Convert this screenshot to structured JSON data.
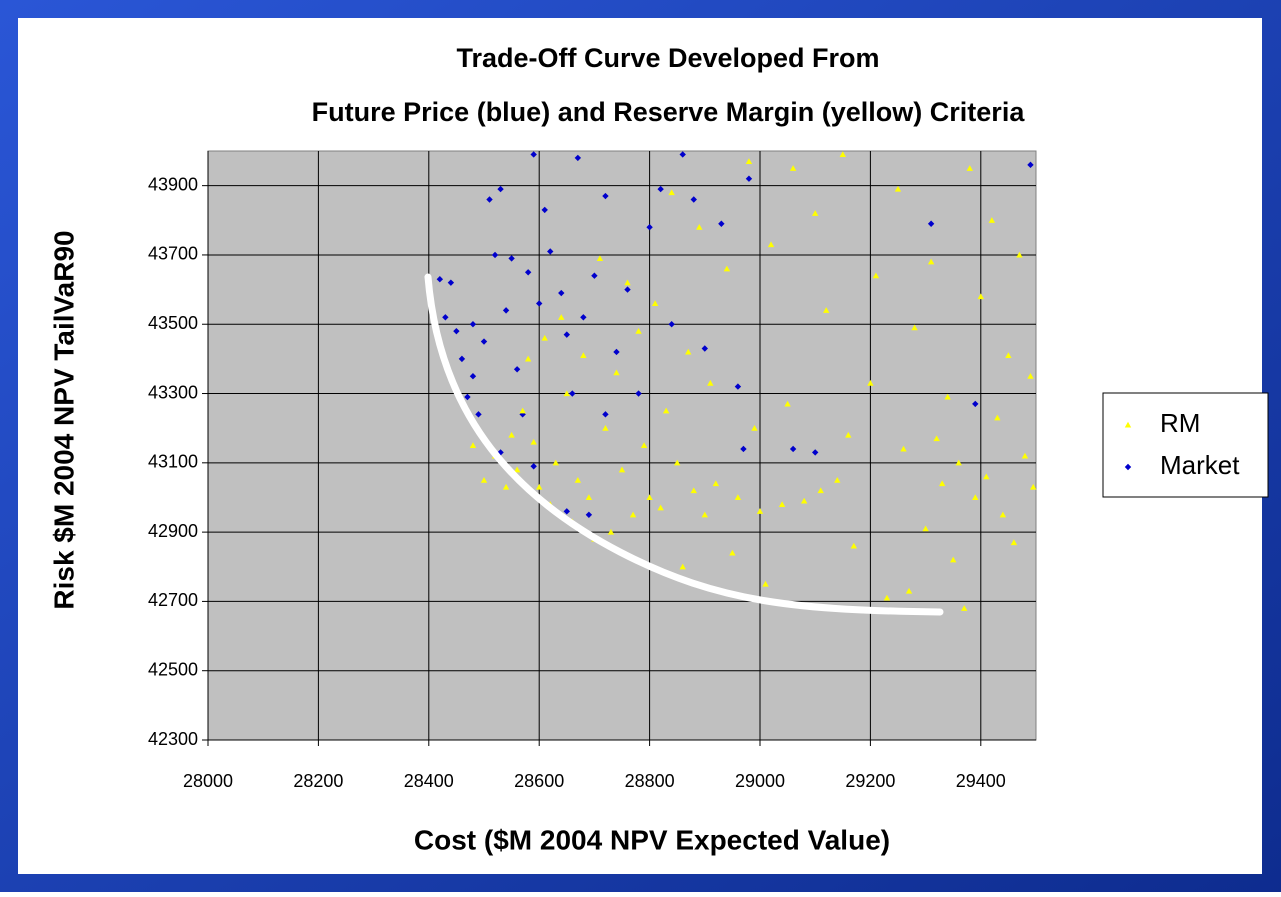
{
  "chart_data": {
    "type": "scatter",
    "title": "Trade-Off Curve Developed From",
    "subtitle": "Future Price (blue) and Reserve Margin (yellow) Criteria",
    "x_label": "Cost ($M 2004 NPV Expected Value)",
    "y_label": "Risk $M 2004 NPV TailVaR90",
    "xlim": [
      28000,
      29500
    ],
    "xticks": [
      28000,
      28200,
      28400,
      28600,
      28800,
      29000,
      29200,
      29400
    ],
    "ylim": [
      42300,
      44000
    ],
    "yticks": [
      42300,
      42500,
      42700,
      42900,
      43100,
      43300,
      43500,
      43700,
      43900
    ],
    "grid": true,
    "legend": "right",
    "series": [
      {
        "name": "RM",
        "color": "#ffff00",
        "marker": "triangle",
        "x": [
          28480,
          28500,
          28520,
          28540,
          28550,
          28560,
          28570,
          28580,
          28590,
          28600,
          28610,
          28620,
          28630,
          28640,
          28650,
          28660,
          28670,
          28680,
          28690,
          28700,
          28710,
          28720,
          28730,
          28740,
          28750,
          28760,
          28770,
          28780,
          28790,
          28800,
          28810,
          28820,
          28830,
          28840,
          28850,
          28860,
          28870,
          28880,
          28890,
          28900,
          28910,
          28920,
          28940,
          28950,
          28960,
          28980,
          28990,
          29000,
          29010,
          29020,
          29040,
          29050,
          29060,
          29080,
          29100,
          29110,
          29120,
          29140,
          29150,
          29160,
          29170,
          29200,
          29210,
          29230,
          29250,
          29260,
          29270,
          29280,
          29300,
          29310,
          29320,
          29330,
          29340,
          29350,
          29360,
          29370,
          29380,
          29390,
          29400,
          29410,
          29420,
          29430,
          29440,
          29450,
          29460,
          29470,
          29480,
          29490,
          29495
        ],
        "values": [
          43150,
          43050,
          43120,
          43030,
          43180,
          43080,
          43250,
          43400,
          43160,
          43030,
          43460,
          42980,
          43100,
          43520,
          43300,
          42930,
          43050,
          43410,
          43000,
          42880,
          43690,
          43200,
          42900,
          43360,
          43080,
          43620,
          42950,
          43480,
          43150,
          43000,
          43560,
          42970,
          43250,
          43880,
          43100,
          42800,
          43420,
          43020,
          43780,
          42950,
          43330,
          43040,
          43660,
          42840,
          43000,
          43970,
          43200,
          42960,
          42750,
          43730,
          42980,
          43270,
          43950,
          42990,
          43820,
          43020,
          43540,
          43050,
          43990,
          43180,
          42860,
          43330,
          43640,
          42710,
          43890,
          43140,
          42730,
          43490,
          42910,
          43680,
          43170,
          43040,
          43290,
          42820,
          43100,
          42680,
          43950,
          43000,
          43580,
          43060,
          43800,
          43230,
          42950,
          43410,
          42870,
          43700,
          43120,
          43350,
          43030
        ]
      },
      {
        "name": "Market",
        "color": "#0000cc",
        "marker": "diamond",
        "x": [
          28420,
          28430,
          28440,
          28450,
          28460,
          28470,
          28480,
          28490,
          28500,
          28510,
          28520,
          28530,
          28540,
          28550,
          28560,
          28570,
          28580,
          28590,
          28600,
          28610,
          28620,
          28640,
          28650,
          28660,
          28670,
          28680,
          28700,
          28720,
          28740,
          28760,
          28780,
          28800,
          28820,
          28840,
          28860,
          28880,
          28900,
          28930,
          28960,
          28970,
          28980,
          29060,
          29100,
          29310,
          29390,
          29490,
          28590,
          28650,
          28690,
          28720,
          28530,
          28480
        ],
        "values": [
          43630,
          43520,
          43620,
          43480,
          43400,
          43290,
          43500,
          43240,
          43450,
          43860,
          43700,
          43890,
          43540,
          43690,
          43370,
          43240,
          43650,
          43990,
          43560,
          43830,
          43710,
          43590,
          43470,
          43300,
          43980,
          43520,
          43640,
          43870,
          43420,
          43600,
          43300,
          43780,
          43890,
          43500,
          43990,
          43860,
          43430,
          43790,
          43320,
          43140,
          43920,
          43140,
          43130,
          43790,
          43270,
          43960,
          43090,
          42960,
          42950,
          43240,
          43130,
          43350
        ]
      }
    ]
  }
}
